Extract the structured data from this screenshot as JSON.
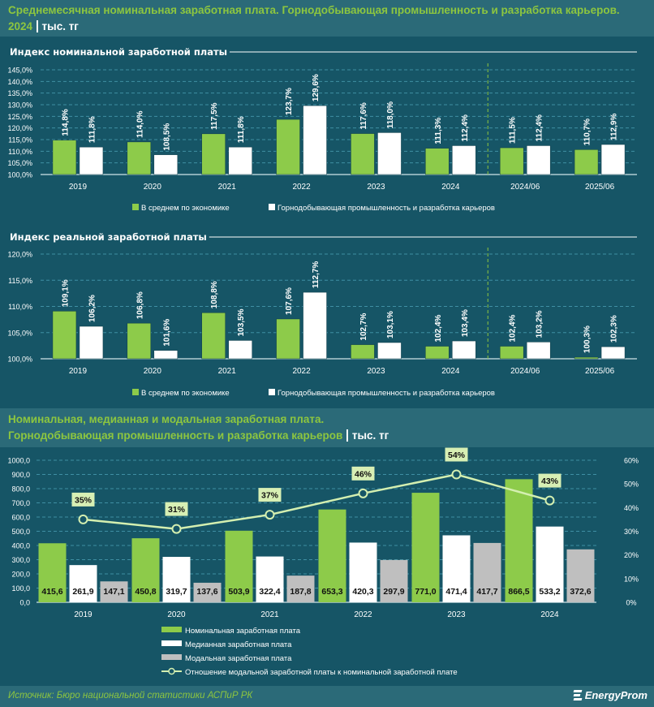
{
  "header1": {
    "title": "Среднемесячная номинальная заработная плата. Горнодобывающая промышленность и разработка карьеров.",
    "year": "2024",
    "unit": "тыс. тг"
  },
  "header2": {
    "title_line1": "Номинальная, медианная и модальная заработная плата.",
    "title_line2": "Горнодобывающая промышленность и разработка карьеров",
    "unit": "тыс. тг"
  },
  "colors": {
    "green": "#8dcb4a",
    "white": "#ffffff",
    "gray": "#bfbfbf",
    "line": "#d4efb0",
    "title_green": "#8dc63f",
    "bg": "#165566",
    "band": "#2b6a78"
  },
  "footer": {
    "source": "Источник: Бюро национальной статистики АСПиР РК",
    "logo": "EnergyProm"
  },
  "chart_data": [
    {
      "type": "bar",
      "title": "Индекс номинальной заработной платы",
      "categories": [
        "2019",
        "2020",
        "2021",
        "2022",
        "2023",
        "2024",
        "2024/06",
        "2025/06"
      ],
      "series": [
        {
          "name": "В среднем по экономике",
          "values": [
            114.8,
            114.0,
            117.5,
            123.7,
            117.6,
            111.3,
            111.5,
            110.7
          ],
          "labels": [
            "114,8%",
            "114,0%",
            "117,5%",
            "123,7%",
            "117,6%",
            "111,3%",
            "111,5%",
            "110,7%"
          ]
        },
        {
          "name": "Горнодобывающая промышленность и разработка карьеров",
          "values": [
            111.8,
            108.5,
            111.8,
            129.6,
            118.0,
            112.4,
            112.4,
            112.9
          ],
          "labels": [
            "111,8%",
            "108,5%",
            "111,8%",
            "129,6%",
            "118,0%",
            "112,4%",
            "112,4%",
            "112,9%"
          ]
        }
      ],
      "ylim": [
        100,
        145
      ],
      "yticks": [
        "100,0%",
        "105,0%",
        "110,0%",
        "115,0%",
        "120,0%",
        "125,0%",
        "130,0%",
        "135,0%",
        "140,0%",
        "145,0%"
      ],
      "grid": true,
      "divider_after": "2024",
      "legend": "bottom"
    },
    {
      "type": "bar",
      "title": "Индекс реальной заработной платы",
      "categories": [
        "2019",
        "2020",
        "2021",
        "2022",
        "2023",
        "2024",
        "2024/06",
        "2025/06"
      ],
      "series": [
        {
          "name": "В среднем по экономике",
          "values": [
            109.1,
            106.8,
            108.8,
            107.6,
            102.7,
            102.4,
            102.4,
            100.3
          ],
          "labels": [
            "109,1%",
            "106,8%",
            "108,8%",
            "107,6%",
            "102,7%",
            "102,4%",
            "102,4%",
            "100,3%"
          ]
        },
        {
          "name": "Горнодобывающая промышленность и разработка карьеров",
          "values": [
            106.2,
            101.6,
            103.5,
            112.7,
            103.1,
            103.4,
            103.2,
            102.3
          ],
          "labels": [
            "106,2%",
            "101,6%",
            "103,5%",
            "112,7%",
            "103,1%",
            "103,4%",
            "103,2%",
            "102,3%"
          ]
        }
      ],
      "ylim": [
        100,
        120
      ],
      "yticks": [
        "100,0%",
        "105,0%",
        "110,0%",
        "115,0%",
        "120,0%"
      ],
      "grid": true,
      "divider_after": "2024",
      "legend": "bottom"
    },
    {
      "type": "bar",
      "title": "Номинальная, медианная и модальная заработная плата",
      "categories": [
        "2019",
        "2020",
        "2021",
        "2022",
        "2023",
        "2024"
      ],
      "series": [
        {
          "name": "Номинальная заработная плата",
          "values": [
            415.6,
            450.8,
            503.9,
            653.3,
            771.0,
            866.5
          ],
          "labels": [
            "415,6",
            "450,8",
            "503,9",
            "653,3",
            "771,0",
            "866,5"
          ]
        },
        {
          "name": "Медианная заработная плата",
          "values": [
            261.9,
            319.7,
            322.4,
            420.3,
            471.4,
            533.2
          ],
          "labels": [
            "261,9",
            "319,7",
            "322,4",
            "420,3",
            "471,4",
            "533,2"
          ]
        },
        {
          "name": "Модальная заработная плата",
          "values": [
            147.1,
            137.6,
            187.8,
            297.9,
            417.7,
            372.6
          ],
          "labels": [
            "147,1",
            "137,6",
            "187,8",
            "297,9",
            "417,7",
            "372,6"
          ]
        },
        {
          "name": "Отношение модальной заработной платы к номинальной заработной плате",
          "type": "line",
          "axis": "right",
          "values": [
            35,
            31,
            37,
            46,
            54,
            43
          ],
          "labels": [
            "35%",
            "31%",
            "37%",
            "46%",
            "54%",
            "43%"
          ]
        }
      ],
      "ylim": [
        0,
        1000
      ],
      "yticks": [
        "0,0",
        "100,0",
        "200,0",
        "300,0",
        "400,0",
        "500,0",
        "600,0",
        "700,0",
        "800,0",
        "900,0",
        "1000,0"
      ],
      "y2lim": [
        0,
        60
      ],
      "y2ticks": [
        "0%",
        "10%",
        "20%",
        "30%",
        "40%",
        "50%",
        "60%"
      ],
      "grid": true,
      "legend": "bottom"
    }
  ]
}
